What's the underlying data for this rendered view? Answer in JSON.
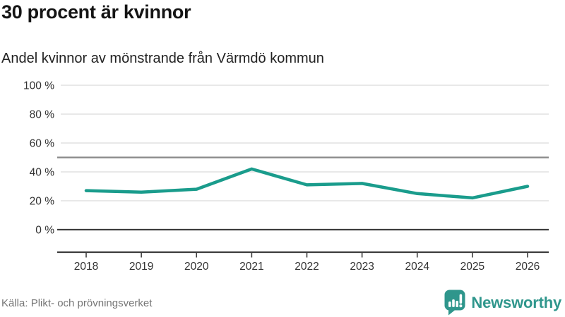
{
  "header": {
    "title": "30 procent är kvinnor",
    "subtitle": "Andel kvinnor av mönstrande från Värmdö kommun"
  },
  "chart_data": {
    "type": "line",
    "title": "30 procent är kvinnor",
    "subtitle": "Andel kvinnor av mönstrande från Värmdö kommun",
    "categories": [
      "2018",
      "2019",
      "2020",
      "2021",
      "2022",
      "2023",
      "2024",
      "2025",
      "2026"
    ],
    "series": [
      {
        "name": "Andel kvinnor av mönstrande",
        "values": [
          27,
          26,
          28,
          42,
          31,
          32,
          25,
          22,
          30
        ]
      }
    ],
    "ylim": [
      0,
      100
    ],
    "yticks": [
      0,
      20,
      40,
      60,
      80,
      100
    ],
    "ytick_suffix": " %",
    "reference_line": 50,
    "grid": true,
    "legend": "none",
    "line_color": "#1a9c8c",
    "gridline_color": "#e1e1e1",
    "axis_color": "#3d3d3d",
    "reference_line_color": "#8a8a8a"
  },
  "footer": {
    "source": "Källa: Plikt- och prövningsverket",
    "brand": "Newsworthy",
    "brand_color": "#2f968c"
  }
}
